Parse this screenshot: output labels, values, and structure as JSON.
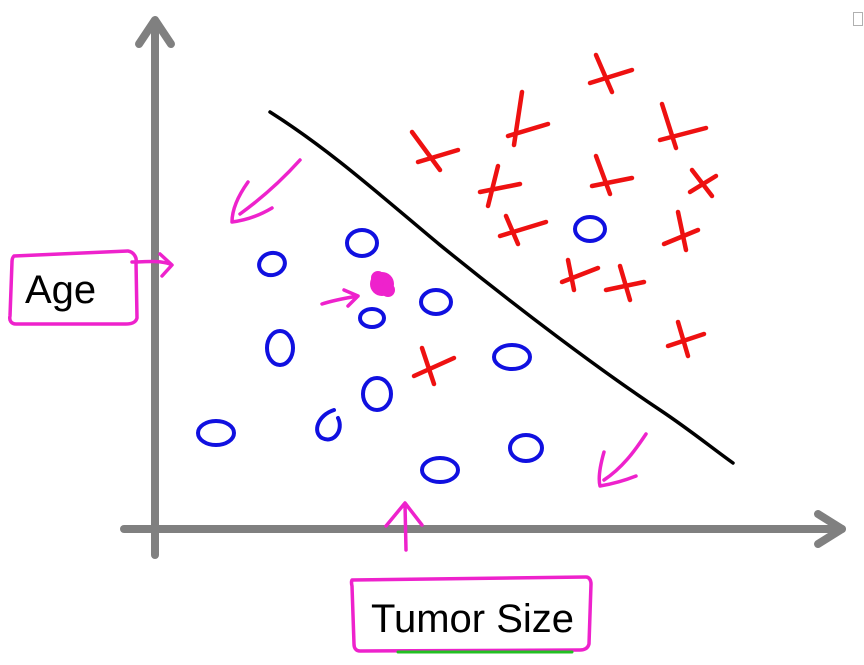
{
  "diagram": {
    "y_axis_label": "Age",
    "x_axis_label": "Tumor Size"
  },
  "colors": {
    "axis": "#808080",
    "negative_class": "#1010e0",
    "positive_class": "#ee1111",
    "decision_boundary": "#000000",
    "annotation": "#ee22cc"
  }
}
